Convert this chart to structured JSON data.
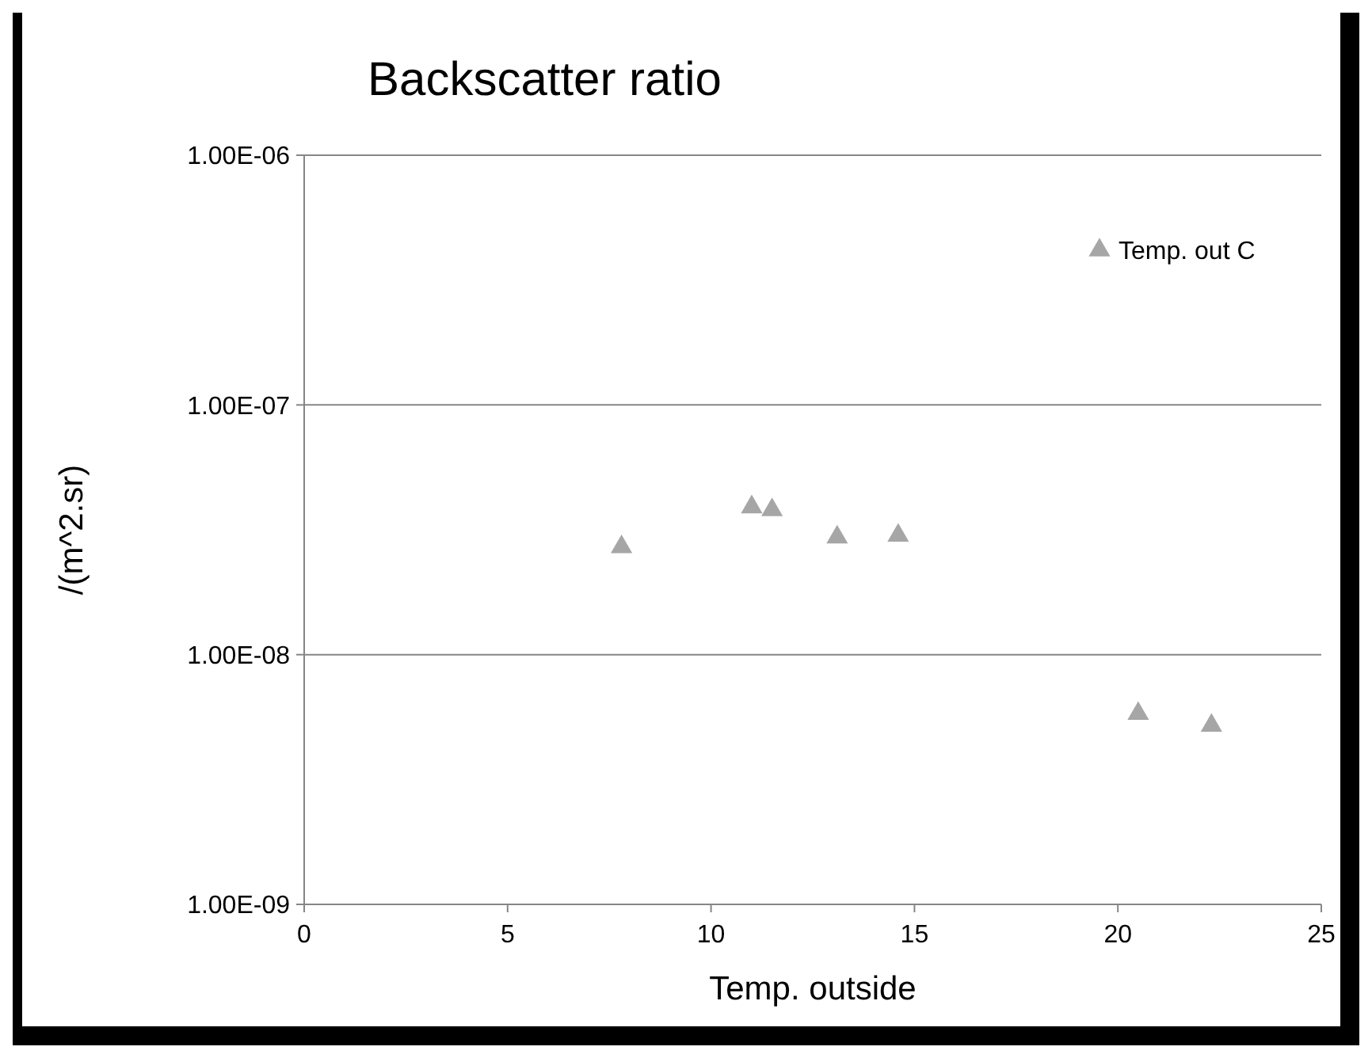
{
  "chart_data": {
    "type": "scatter",
    "title": "Backscatter ratio",
    "xlabel": "Temp. outside",
    "ylabel": "/(m^2.sr)",
    "x": [
      7.8,
      11.0,
      11.5,
      13.1,
      14.6,
      20.5,
      22.3
    ],
    "series": [
      {
        "name": "Temp. out C",
        "color": "#a6a6a6",
        "values": [
          2.7e-08,
          3.9e-08,
          3.8e-08,
          2.95e-08,
          3e-08,
          5.8e-09,
          5.2e-09
        ]
      }
    ],
    "log": "y",
    "xlim": [
      0,
      25
    ],
    "xticks": [
      0,
      5,
      10,
      15,
      20,
      25
    ],
    "ylim": [
      1e-09,
      1e-06
    ],
    "yticks": [
      {
        "value": 1e-09,
        "label": "1.00E-09"
      },
      {
        "value": 1e-08,
        "label": "1.00E-08"
      },
      {
        "value": 1e-07,
        "label": "1.00E-07"
      },
      {
        "value": 1e-06,
        "label": "1.00E-06"
      }
    ],
    "grid": "y",
    "legend": "top right",
    "marker": "triangle"
  }
}
